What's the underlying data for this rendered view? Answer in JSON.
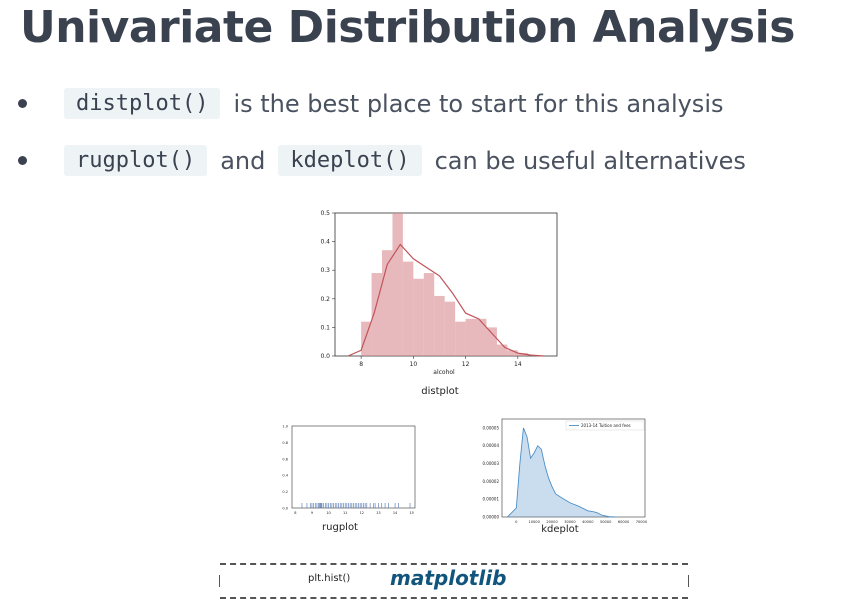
{
  "title": "Univariate Distribution Analysis",
  "bullets": [
    {
      "code": "distplot()",
      "text": "is the best place to start for this analysis"
    },
    {
      "code": "rugplot()",
      "and": "and",
      "code2": "kdeplot()",
      "text": "can be useful alternatives"
    }
  ],
  "colors": {
    "title": "#3a4250",
    "code_bg": "#eef3f6",
    "distplot": "#d98b8f",
    "kde": "#4c8fc7",
    "matplotlib": "#11557c"
  },
  "distplot": {
    "caption": "distplot",
    "xlabel": "alcohol",
    "yticks": [
      "0.0",
      "0.1",
      "0.2",
      "0.3",
      "0.4",
      "0.5"
    ],
    "xticks": [
      "8",
      "10",
      "12",
      "14"
    ]
  },
  "rugplot": {
    "caption": "rugplot",
    "yticks": [
      "0.0",
      "0.2",
      "0.4",
      "0.6",
      "0.8",
      "1.0"
    ],
    "xticks": [
      "8",
      "9",
      "10",
      "11",
      "12",
      "13",
      "14",
      "15"
    ]
  },
  "kdeplot": {
    "caption": "kdeplot",
    "legend": "2013-14 Tuition and fees",
    "yticks": [
      "0.00000",
      "0.00001",
      "0.00002",
      "0.00003",
      "0.00004",
      "0.00005"
    ],
    "xticks": [
      "0",
      "10000",
      "20000",
      "30000",
      "40000",
      "50000",
      "60000",
      "70000"
    ]
  },
  "footer": {
    "label": "plt.hist()",
    "logo": "matplotlib"
  },
  "chart_data": [
    {
      "type": "bar",
      "title": "distplot",
      "xlabel": "alcohol",
      "ylabel": "",
      "xlim": [
        7,
        15.5
      ],
      "ylim": [
        0,
        0.5
      ],
      "bin_edges": [
        8.0,
        8.4,
        8.8,
        9.2,
        9.6,
        10.0,
        10.4,
        10.8,
        11.2,
        11.6,
        12.0,
        12.4,
        12.8,
        13.2,
        13.6,
        14.0,
        14.4
      ],
      "values": [
        0.12,
        0.29,
        0.37,
        0.5,
        0.33,
        0.27,
        0.29,
        0.21,
        0.19,
        0.12,
        0.13,
        0.13,
        0.1,
        0.04,
        0.02,
        0.01
      ],
      "kde": {
        "x": [
          7.5,
          8.0,
          8.5,
          9.0,
          9.5,
          10.0,
          10.5,
          11.0,
          11.5,
          12.0,
          12.5,
          13.0,
          13.5,
          14.0,
          14.5,
          15.0
        ],
        "y": [
          0.0,
          0.02,
          0.15,
          0.32,
          0.39,
          0.34,
          0.31,
          0.28,
          0.22,
          0.15,
          0.13,
          0.08,
          0.03,
          0.01,
          0.003,
          0.0
        ]
      }
    },
    {
      "type": "scatter",
      "title": "rugplot",
      "xlim": [
        7.8,
        15.2
      ],
      "ylim": [
        0,
        1
      ],
      "x": [
        8.4,
        8.7,
        8.9,
        9.0,
        9.1,
        9.2,
        9.3,
        9.4,
        9.45,
        9.5,
        9.55,
        9.6,
        9.7,
        9.8,
        9.9,
        10.0,
        10.1,
        10.2,
        10.3,
        10.4,
        10.5,
        10.6,
        10.7,
        10.8,
        10.9,
        11.0,
        11.1,
        11.2,
        11.3,
        11.4,
        11.5,
        11.6,
        11.7,
        11.8,
        11.9,
        12.0,
        12.1,
        12.2,
        12.3,
        12.5,
        12.7,
        12.8,
        13.0,
        13.2,
        13.4,
        13.6,
        14.0,
        14.2,
        14.9
      ]
    },
    {
      "type": "area",
      "title": "kdeplot",
      "series": [
        {
          "name": "2013-14 Tuition and fees",
          "x": [
            -5000,
            0,
            2000,
            4000,
            6000,
            8000,
            10000,
            12000,
            14000,
            16000,
            18000,
            20000,
            22000,
            25000,
            30000,
            35000,
            40000,
            43000,
            45000,
            48000,
            52000,
            56000
          ],
          "values": [
            0.0,
            5e-06,
            3e-05,
            5e-05,
            4.5e-05,
            3.3e-05,
            3.6e-05,
            4e-05,
            3.8e-05,
            2.9e-05,
            2.2e-05,
            1.7e-05,
            1.3e-05,
            1.1e-05,
            8e-06,
            6e-06,
            3.5e-06,
            3e-06,
            2.5e-06,
            1e-06,
            2e-07,
            0.0
          ]
        }
      ],
      "xlim": [
        -8000,
        72000
      ],
      "ylim": [
        0,
        5.5e-05
      ]
    }
  ]
}
